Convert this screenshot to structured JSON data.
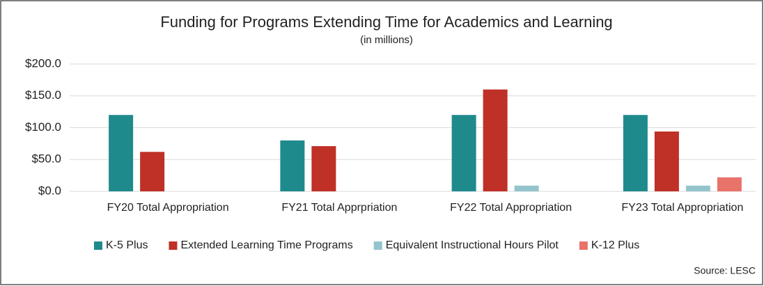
{
  "chart_data": {
    "type": "bar",
    "title": "Funding for Programs Extending Time for Academics and Learning",
    "subtitle": "(in millions)",
    "categories": [
      "FY20 Total Appropriation",
      "FY21 Total Apprpriation",
      "FY22 Total Appropriation",
      "FY23 Total Appropriation"
    ],
    "series": [
      {
        "name": "K-5 Plus",
        "color": "#1f8a8c",
        "values": [
          120,
          80,
          120,
          120
        ]
      },
      {
        "name": "Extended Learning Time Programs",
        "color": "#bf3026",
        "values": [
          62,
          71,
          160,
          94
        ]
      },
      {
        "name": "Equivalent Instructional Hours Pilot",
        "color": "#93c4cc",
        "values": [
          null,
          null,
          9,
          9
        ]
      },
      {
        "name": "K-12 Plus",
        "color": "#e8736a",
        "values": [
          null,
          null,
          null,
          22
        ]
      }
    ],
    "ylim": [
      0,
      200
    ],
    "yticks": [
      {
        "value": 0,
        "label": "$0.0"
      },
      {
        "value": 50,
        "label": "$50.0"
      },
      {
        "value": 100,
        "label": "$100.0"
      },
      {
        "value": 150,
        "label": "$150.0"
      },
      {
        "value": 200,
        "label": "$200.0"
      }
    ],
    "grid": true,
    "legend": "bottom",
    "source": "Source: LESC"
  }
}
